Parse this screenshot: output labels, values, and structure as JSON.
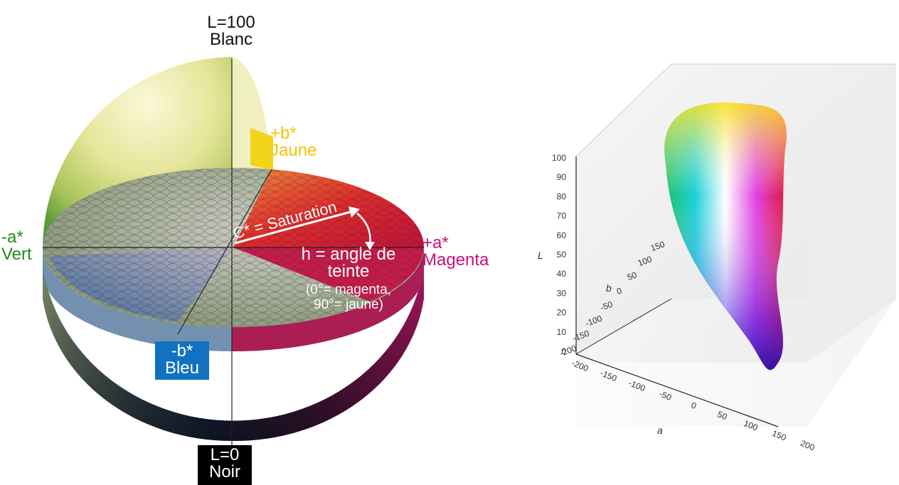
{
  "colors": {
    "yellow": "#f5c400",
    "green": "#1f8a1f",
    "magenta": "#c8107a",
    "blue": "#1072c0",
    "white_text": "#ffffff",
    "black_label": "#000000"
  },
  "sphere": {
    "top_label": {
      "line1": "L=100",
      "line2": "Blanc"
    },
    "yellow_label": {
      "line1": "+b*",
      "line2": "Jaune"
    },
    "green_label": {
      "line1": "-a*",
      "line2": "Vert"
    },
    "magenta_label": {
      "line1": "+a*",
      "line2": "Magenta"
    },
    "blue_label": {
      "line1": "-b*",
      "line2": "Bleu"
    },
    "bottom_label": {
      "line1": "L=0",
      "line2": "Noir"
    },
    "saturation_label": "C* = Saturation",
    "hue_label": {
      "line1": "h = angle de",
      "line2": "teinte",
      "line3": "(0°= magenta,",
      "line4": "90°= jaune)"
    }
  },
  "gamut_plot": {
    "l_axis_title": "L",
    "l_ticks": [
      "100",
      "90",
      "80",
      "70",
      "60",
      "50",
      "40",
      "30",
      "20",
      "10",
      "0"
    ],
    "b_axis_title": "b",
    "b_ticks": [
      "150",
      "100",
      "50",
      "0",
      "-50",
      "-100",
      "-150",
      "-200"
    ],
    "a_axis_title": "a",
    "a_ticks": [
      "-200",
      "-150",
      "-100",
      "-50",
      "0",
      "50",
      "100",
      "150",
      "200"
    ]
  }
}
